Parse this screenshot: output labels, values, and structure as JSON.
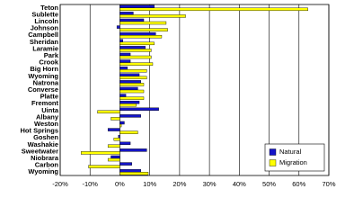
{
  "chart_data": {
    "type": "bar",
    "orientation": "horizontal",
    "categories": [
      "Teton",
      "Sublette",
      "Lincoln",
      "Johnson",
      "Campbell",
      "Sheridan",
      "Laramie",
      "Park",
      "Crook",
      "Big Horn",
      "Wyoming",
      "Natrona",
      "Converse",
      "Platte",
      "Fremont",
      "Uinta",
      "Albany",
      "Weston",
      "Hot Springs",
      "Goshen",
      "Washakie",
      "Sweetwater",
      "Niobrara",
      "Carbon",
      "Wyoming"
    ],
    "series": [
      {
        "name": "Natural",
        "color": "#1414c8",
        "values": [
          11.5,
          4.5,
          8,
          -1,
          12,
          1,
          8.5,
          3.5,
          3.5,
          2.5,
          6.5,
          7,
          6,
          2,
          6.5,
          13,
          7,
          1.5,
          -4,
          -0.5,
          3.5,
          9,
          -3,
          4,
          7
        ]
      },
      {
        "name": "Migration",
        "color": "#ffff00",
        "values": [
          63,
          22,
          15.5,
          16,
          14,
          11.5,
          10.5,
          10.5,
          11,
          9,
          9,
          8,
          8,
          8,
          5.5,
          -7.5,
          -3,
          0.5,
          6,
          -2,
          -4,
          -13,
          -4,
          -10.5,
          9.5
        ]
      }
    ],
    "xlim": [
      -20,
      70
    ],
    "xticks": [
      {
        "value": -20,
        "label": "-20%"
      },
      {
        "value": -10,
        "label": "-10%"
      },
      {
        "value": 0,
        "label": "0%"
      },
      {
        "value": 10,
        "label": "10%"
      },
      {
        "value": 20,
        "label": "20%"
      },
      {
        "value": 30,
        "label": "30%"
      },
      {
        "value": 40,
        "label": "40%"
      },
      {
        "value": 50,
        "label": "50%"
      },
      {
        "value": 60,
        "label": "60%"
      },
      {
        "value": 70,
        "label": "70%"
      }
    ],
    "grid": true,
    "legend": "lower right"
  }
}
